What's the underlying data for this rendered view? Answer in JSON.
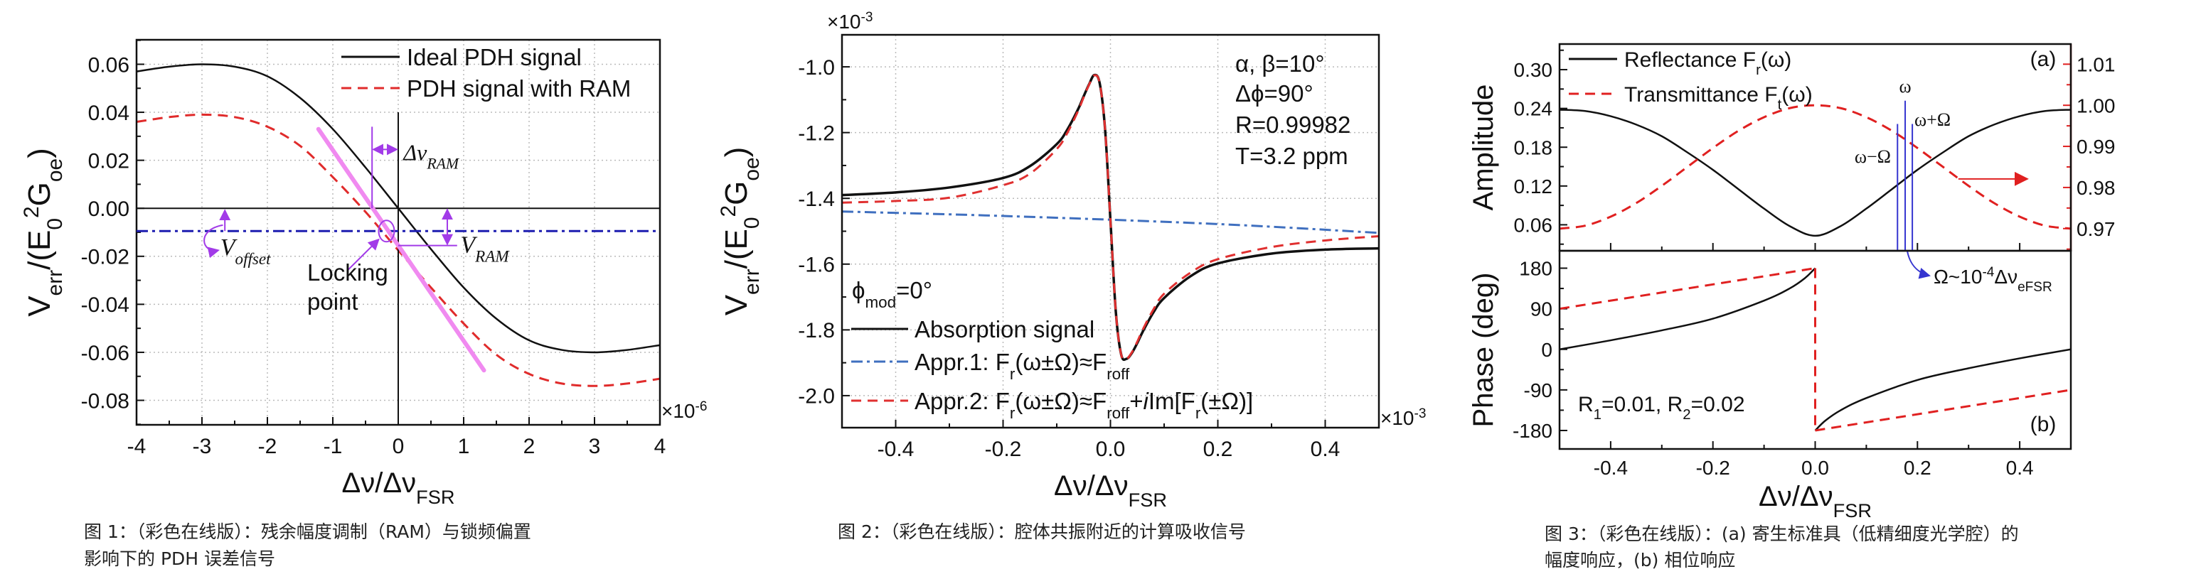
{
  "captions": [
    {
      "lines": [
        "图 1：（彩色在线版）：残余幅度调制（RAM）与锁频偏置",
        "影响下的 PDH 误差信号"
      ]
    },
    {
      "lines": [
        "图 2：（彩色在线版）：腔体共振附近的计算吸收信号"
      ]
    },
    {
      "lines": [
        "图 3：（彩色在线版）：(a) 寄生标准具（低精细度光学腔）的",
        "幅度响应，(b) 相位响应"
      ]
    }
  ],
  "chart_data": [
    {
      "type": "line",
      "xlim": [
        -4,
        4
      ],
      "ylim": [
        -0.0902,
        0.0702
      ],
      "grid": true,
      "legend": "top-right",
      "xticks": [
        -4,
        -3,
        -2,
        -1,
        0,
        1,
        2,
        3,
        4
      ],
      "xtick_labels": [
        "-4",
        "-3",
        "-2",
        "-1",
        "0",
        "1",
        "2",
        "3",
        "4"
      ],
      "yticks": [
        -0.08,
        -0.06,
        -0.04,
        -0.02,
        0,
        0.02,
        0.04,
        0.06
      ],
      "ytick_labels": [
        "-0.08",
        "-0.06",
        "-0.04",
        "-0.02",
        "0.00",
        "0.02",
        "0.04",
        "0.06"
      ],
      "x_multiplier": [
        {
          "t": "×10"
        },
        {
          "t": "-6",
          "sup": true
        }
      ],
      "xlabel": [
        {
          "t": "Δν/Δν"
        },
        {
          "t": "FSR",
          "sub": true
        }
      ],
      "ylabel": [
        {
          "t": "V"
        },
        {
          "t": "err",
          "sub": true
        },
        {
          "t": "/(E"
        },
        {
          "t": "0",
          "sub": true
        },
        {
          "t": "2",
          "sup": true
        },
        {
          "t": "G"
        },
        {
          "t": "oe",
          "sub": true
        },
        {
          "t": ")"
        }
      ],
      "series": [
        {
          "label": [
            {
              "t": "Ideal PDH signal"
            }
          ],
          "color": "#111111",
          "style": "solid",
          "x": [
            -4,
            -3.5,
            -3,
            -2.5,
            -2,
            -1.5,
            -1,
            -0.5,
            0,
            0.5,
            1,
            1.5,
            2,
            2.5,
            3,
            3.5,
            4
          ],
          "y": [
            0.057,
            0.059,
            0.06,
            0.059,
            0.055,
            0.046,
            0.033,
            0.017,
            0,
            -0.017,
            -0.033,
            -0.046,
            -0.055,
            -0.059,
            -0.06,
            -0.059,
            -0.057
          ]
        },
        {
          "label": [
            {
              "t": "PDH signal with RAM"
            }
          ],
          "color": "#e02b2b",
          "style": "dashed",
          "x": [
            -4,
            -3.5,
            -3,
            -2.5,
            -2,
            -1.5,
            -1,
            -0.5,
            0,
            0.5,
            1,
            1.5,
            2,
            2.5,
            3,
            3.5,
            4
          ],
          "y": [
            0.036,
            0.038,
            0.039,
            0.038,
            0.034,
            0.026,
            0.013,
            -0.0015,
            -0.0175,
            -0.033,
            -0.048,
            -0.061,
            -0.069,
            -0.073,
            -0.074,
            -0.073,
            -0.071
          ]
        }
      ],
      "offset_level": -0.0095,
      "locking_slope": {
        "x": [
          -1.22,
          1.31
        ],
        "y": [
          0.033,
          -0.0675
        ]
      },
      "locking_point": {
        "x": -0.18,
        "y": -0.0095
      },
      "delta_nu_ram": -0.4,
      "v_ram": -0.0155,
      "annotation_color": "#a23be8",
      "slope_color": "#f08af0",
      "offset_color": "#1d1db0",
      "annotations": {
        "delta_nu_ram": [
          {
            "t": "Δν",
            "i": true
          },
          {
            "t": "RAM",
            "sub": true,
            "i": true
          }
        ],
        "v_ram": [
          {
            "t": "V",
            "i": true
          },
          {
            "t": "RAM",
            "sub": true,
            "i": true
          }
        ],
        "v_offset": [
          {
            "t": "V",
            "i": true
          },
          {
            "t": "offset",
            "sub": true,
            "i": true
          }
        ],
        "locking": [
          "Locking",
          "point"
        ]
      }
    },
    {
      "type": "line",
      "xlim": [
        -0.5,
        0.5
      ],
      "ylim": [
        -2.0974,
        -0.9026
      ],
      "grid": true,
      "legend": "bottom-left",
      "xticks": [
        -0.4,
        -0.2,
        0,
        0.2,
        0.4
      ],
      "xtick_labels": [
        "-0.4",
        "-0.2",
        "0.0",
        "0.2",
        "0.4"
      ],
      "yticks": [
        -2.0,
        -1.8,
        -1.6,
        -1.4,
        -1.2,
        -1.0
      ],
      "ytick_labels": [
        "-2.0",
        "-1.8",
        "-1.6",
        "-1.4",
        "-1.2",
        "-1.0"
      ],
      "x_multiplier": [
        {
          "t": "×10"
        },
        {
          "t": "-3",
          "sup": true
        }
      ],
      "y_multiplier": [
        {
          "t": "×10"
        },
        {
          "t": "-3",
          "sup": true
        }
      ],
      "xlabel": [
        {
          "t": "Δν/Δν"
        },
        {
          "t": "FSR",
          "sub": true
        }
      ],
      "ylabel": [
        {
          "t": "V"
        },
        {
          "t": "err",
          "sub": true
        },
        {
          "t": "/(E"
        },
        {
          "t": "0",
          "sub": true
        },
        {
          "t": "2",
          "sup": true
        },
        {
          "t": "G"
        },
        {
          "t": "oe",
          "sub": true
        },
        {
          "t": ")"
        }
      ],
      "series": [
        {
          "label": [
            {
              "t": "Absorption signal"
            }
          ],
          "color": "#111111",
          "style": "solid",
          "x": [
            -0.5,
            -0.4,
            -0.3,
            -0.2,
            -0.15,
            -0.1,
            -0.08,
            -0.06,
            -0.05,
            -0.04,
            -0.03,
            -0.02,
            -0.01,
            0,
            0.01,
            0.02,
            0.03,
            0.04,
            0.05,
            0.06,
            0.08,
            0.1,
            0.15,
            0.2,
            0.3,
            0.4,
            0.5
          ],
          "y": [
            -1.39,
            -1.382,
            -1.367,
            -1.338,
            -1.302,
            -1.235,
            -1.19,
            -1.128,
            -1.09,
            -1.054,
            -1.025,
            -1.05,
            -1.19,
            -1.467,
            -1.745,
            -1.875,
            -1.888,
            -1.87,
            -1.84,
            -1.806,
            -1.747,
            -1.703,
            -1.636,
            -1.598,
            -1.568,
            -1.556,
            -1.552
          ]
        },
        {
          "label": [
            {
              "t": "Appr.1: F"
            },
            {
              "t": "r",
              "sub": true
            },
            {
              "t": "(ω±Ω)≈F"
            },
            {
              "t": "roff",
              "sub": true
            }
          ],
          "color": "#3f6fbf",
          "style": "dashdot",
          "x": [
            -0.5,
            -0.25,
            0,
            0.25,
            0.5
          ],
          "y": [
            -1.44,
            -1.451,
            -1.465,
            -1.482,
            -1.505
          ]
        },
        {
          "label": [
            {
              "t": "Appr.2: F"
            },
            {
              "t": "r",
              "sub": true
            },
            {
              "t": "(ω±Ω)≈F"
            },
            {
              "t": "roff",
              "sub": true
            },
            {
              "t": "+"
            },
            {
              "t": "i",
              "i": true
            },
            {
              "t": "Im[F"
            },
            {
              "t": "r",
              "sub": true
            },
            {
              "t": "(±Ω)]"
            }
          ],
          "color": "#e03030",
          "style": "dashed",
          "x": [
            -0.5,
            -0.4,
            -0.3,
            -0.2,
            -0.15,
            -0.1,
            -0.08,
            -0.06,
            -0.05,
            -0.04,
            -0.03,
            -0.02,
            -0.01,
            0,
            0.01,
            0.02,
            0.03,
            0.04,
            0.05,
            0.06,
            0.08,
            0.1,
            0.15,
            0.2,
            0.3,
            0.4,
            0.5
          ],
          "y": [
            -1.413,
            -1.408,
            -1.398,
            -1.36,
            -1.325,
            -1.25,
            -1.2,
            -1.133,
            -1.093,
            -1.055,
            -1.026,
            -1.05,
            -1.19,
            -1.467,
            -1.745,
            -1.875,
            -1.888,
            -1.868,
            -1.836,
            -1.8,
            -1.738,
            -1.69,
            -1.625,
            -1.585,
            -1.548,
            -1.528,
            -1.515
          ]
        }
      ],
      "annotations": {
        "params": [
          "α, β=10°",
          "Δϕ=90°",
          "R=0.99982",
          "T=3.2 ppm"
        ],
        "phi_mod": [
          {
            "t": "ϕ"
          },
          {
            "t": "mod",
            "sub": true
          },
          {
            "t": "=0°"
          }
        ]
      }
    },
    {
      "type": "line",
      "panel_label": "(a)",
      "xlim": [
        -0.5,
        0.5
      ],
      "ylim": [
        0.0198,
        0.3396
      ],
      "y2lim": [
        0.9646,
        1.0149
      ],
      "grid": false,
      "legend": "top-left",
      "xticks": [
        -0.4,
        -0.2,
        0,
        0.2,
        0.4
      ],
      "yticks": [
        0.06,
        0.12,
        0.18,
        0.24,
        0.3
      ],
      "ytick_labels": [
        "0.06",
        "0.12",
        "0.18",
        "0.24",
        "0.30"
      ],
      "y2ticks": [
        0.97,
        0.98,
        0.99,
        1.0,
        1.01
      ],
      "y2tick_labels": [
        "0.97",
        "0.98",
        "0.99",
        "1.00",
        "1.01"
      ],
      "y2color": "#e02020",
      "ylabel": [
        {
          "t": "Amplitude"
        }
      ],
      "series": [
        {
          "label": [
            {
              "t": "Reflectance F"
            },
            {
              "t": "r",
              "sub": true
            },
            {
              "t": "(ω)"
            }
          ],
          "color": "#111111",
          "style": "solid",
          "axis": "left",
          "x": [
            -0.5,
            -0.45,
            -0.4,
            -0.35,
            -0.3,
            -0.25,
            -0.2,
            -0.15,
            -0.1,
            -0.05,
            0,
            0.05,
            0.1,
            0.15,
            0.2,
            0.25,
            0.3,
            0.35,
            0.4,
            0.45,
            0.5
          ],
          "y": [
            0.238,
            0.236,
            0.228,
            0.215,
            0.197,
            0.172,
            0.145,
            0.115,
            0.085,
            0.058,
            0.043,
            0.058,
            0.085,
            0.115,
            0.145,
            0.172,
            0.197,
            0.215,
            0.228,
            0.236,
            0.238
          ]
        },
        {
          "label": [
            {
              "t": "Transmittance F"
            },
            {
              "t": "t",
              "sub": true
            },
            {
              "t": "(ω)"
            }
          ],
          "color": "#e02020",
          "style": "dashed",
          "axis": "right",
          "x": [
            -0.5,
            -0.45,
            -0.4,
            -0.35,
            -0.3,
            -0.25,
            -0.2,
            -0.15,
            -0.1,
            -0.05,
            0,
            0.05,
            0.1,
            0.15,
            0.2,
            0.25,
            0.3,
            0.35,
            0.4,
            0.45,
            0.5
          ],
          "y": [
            0.97,
            0.9707,
            0.9729,
            0.9762,
            0.9804,
            0.985,
            0.9896,
            0.9938,
            0.9971,
            0.9993,
            1.0,
            0.9993,
            0.9971,
            0.9938,
            0.9896,
            0.985,
            0.9804,
            0.9762,
            0.9729,
            0.9707,
            0.97
          ]
        }
      ],
      "sidebands": {
        "x": [
          0.161,
          0.176,
          0.19
        ],
        "y": [
          0.216,
          0.252,
          0.216
        ],
        "color": "#3535d0",
        "labels": [
          [
            {
              "t": "ω−Ω"
            }
          ],
          [
            {
              "t": "ω"
            }
          ],
          [
            {
              "t": "ω+Ω"
            }
          ]
        ]
      },
      "sideband_note": [
        {
          "t": "Ω~10"
        },
        {
          "t": "-4",
          "sup": true
        },
        {
          "t": "Δν"
        },
        {
          "t": "eFSR",
          "sub": true
        }
      ],
      "right_arrow": {
        "x": [
          0.28,
          0.415
        ],
        "y": 0.131
      }
    },
    {
      "type": "line",
      "panel_label": "(b)",
      "xlim": [
        -0.5,
        0.5
      ],
      "ylim": [
        -221,
        218.6
      ],
      "grid": false,
      "xticks": [
        -0.4,
        -0.2,
        0,
        0.2,
        0.4
      ],
      "xtick_labels": [
        "-0.4",
        "-0.2",
        "0.0",
        "0.2",
        "0.4"
      ],
      "yticks": [
        -180,
        -90,
        0,
        90,
        180
      ],
      "ytick_labels": [
        "-180",
        "-90",
        "0",
        "90",
        "180"
      ],
      "xlabel": [
        {
          "t": "Δν/Δν"
        },
        {
          "t": "FSR",
          "sub": true
        }
      ],
      "ylabel": [
        {
          "t": "Phase (deg)"
        }
      ],
      "note": [
        {
          "t": "R"
        },
        {
          "t": "1",
          "sub": true
        },
        {
          "t": "=0.01, R"
        },
        {
          "t": "2",
          "sub": true
        },
        {
          "t": "=0.02"
        }
      ],
      "series": [
        {
          "color": "#111111",
          "style": "solid",
          "segments": [
            {
              "x": [
                -0.5,
                -0.4,
                -0.3,
                -0.2,
                -0.1,
                -0.05,
                -0.02,
                0
              ],
              "y": [
                0,
                20,
                42,
                68,
                108,
                135,
                158,
                180
              ]
            },
            {
              "x": [
                0,
                0.02,
                0.05,
                0.1,
                0.2,
                0.3,
                0.4,
                0.5
              ],
              "y": [
                -180,
                -158,
                -135,
                -108,
                -68,
                -42,
                -20,
                0
              ]
            }
          ]
        },
        {
          "color": "#e02020",
          "style": "dashed",
          "segments": [
            {
              "x": [
                -0.5,
                0
              ],
              "y": [
                90,
                180
              ]
            },
            {
              "x": [
                0,
                0
              ],
              "y": [
                180,
                -180
              ]
            },
            {
              "x": [
                0,
                0.5
              ],
              "y": [
                -180,
                -90
              ]
            }
          ]
        }
      ]
    }
  ]
}
